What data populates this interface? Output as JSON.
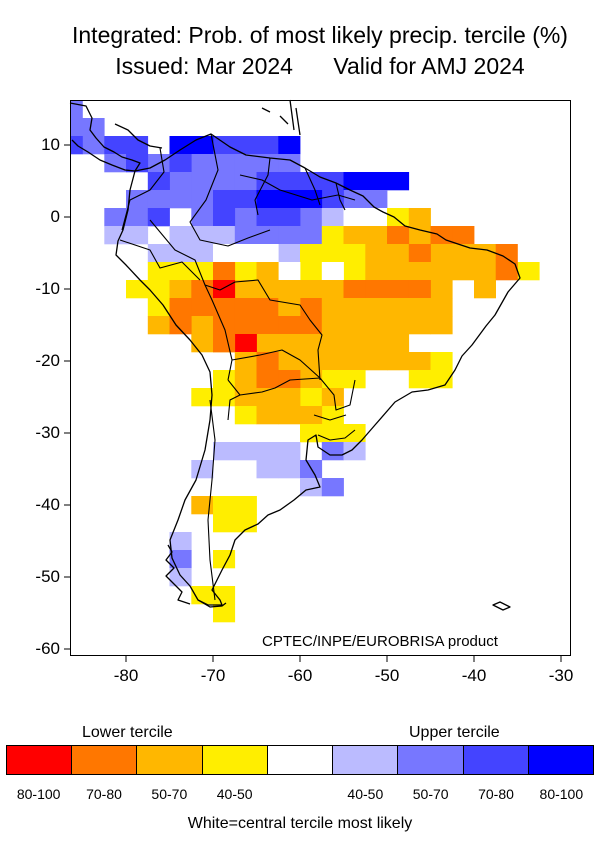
{
  "title": {
    "line1": "Integrated: Prob. of most likely precip. tercile (%)",
    "issued": "Issued: Mar 2024",
    "valid": "Valid for AMJ 2024"
  },
  "credit": "CPTEC/INPE/EUROBRISA product",
  "chart_data": {
    "type": "heatmap",
    "title": "Integrated: Prob. of most likely precip. tercile (%) — Issued: Mar 2024, Valid for AMJ 2024",
    "xlabel": "",
    "ylabel": "",
    "xlim": [
      -86.5,
      -29
    ],
    "ylim": [
      -61,
      16.5
    ],
    "x_ticks": [
      -80,
      -70,
      -60,
      -50,
      -40,
      -30
    ],
    "x_tick_labels": [
      "-80",
      "-70",
      "-60",
      "-50",
      "-40",
      "-30"
    ],
    "y_ticks": [
      10,
      0,
      -10,
      -20,
      -30,
      -40,
      -50,
      -60
    ],
    "y_tick_labels": [
      "10",
      "0",
      "-10",
      "-20",
      "-30",
      "-40",
      "-50",
      "-60"
    ],
    "grid_step_deg": 2.5,
    "categories": [
      "L80",
      "L70",
      "L50",
      "L40",
      "C",
      "U40",
      "U50",
      "U70",
      "U80"
    ],
    "colors": {
      "L80": "#ff0000",
      "L70": "#ff7700",
      "L50": "#ffb700",
      "L40": "#ffee00",
      "C": "#ffffff",
      "U40": "#bbbbff",
      "U50": "#7777ff",
      "U70": "#4444ff",
      "U80": "#0000ff"
    },
    "cells": [
      {
        "lat": 15,
        "lons": [
          -86.25
        ],
        "cat": "U50"
      },
      {
        "lat": 12.5,
        "lons": [
          -86.25,
          -83.75
        ],
        "cat": "U50"
      },
      {
        "lat": 10,
        "lons": [
          -83.75
        ],
        "cat": "U50"
      },
      {
        "lat": 10,
        "lons": [
          -86.25,
          -81.25,
          -78.75,
          -68.75,
          -66.25,
          -63.75
        ],
        "cat": "U70"
      },
      {
        "lat": 10,
        "lons": [
          -73.75,
          -71.25,
          -61.25
        ],
        "cat": "U80"
      },
      {
        "lat": 7.5,
        "lons": [
          -81.25,
          -76.25,
          -71.25,
          -68.75,
          -66.25,
          -63.75,
          -61.25
        ],
        "cat": "U50"
      },
      {
        "lat": 7.5,
        "lons": [
          -78.75,
          -73.75
        ],
        "cat": "U70"
      },
      {
        "lat": 5,
        "lons": [
          -73.75,
          -71.25,
          -68.75,
          -66.25
        ],
        "cat": "U50"
      },
      {
        "lat": 5,
        "lons": [
          -76.25,
          -63.75,
          -61.25,
          -58.75,
          -56.25
        ],
        "cat": "U70"
      },
      {
        "lat": 5,
        "lons": [
          -53.75,
          -51.25,
          -48.75
        ],
        "cat": "U80"
      },
      {
        "lat": 2.5,
        "lons": [
          -78.75,
          -76.25,
          -73.75,
          -71.25,
          -53.75,
          -51.25
        ],
        "cat": "U50"
      },
      {
        "lat": 2.5,
        "lons": [
          -68.75,
          -66.25,
          -56.25
        ],
        "cat": "U70"
      },
      {
        "lat": 2.5,
        "lons": [
          -63.75,
          -61.25,
          -58.75
        ],
        "cat": "U80"
      },
      {
        "lat": 0,
        "lons": [
          -81.25,
          -78.75,
          -71.25,
          -66.25,
          -58.75
        ],
        "cat": "U50"
      },
      {
        "lat": 0,
        "lons": [
          -76.25,
          -68.75,
          -63.75,
          -61.25
        ],
        "cat": "U70"
      },
      {
        "lat": 0,
        "lons": [
          -56.25
        ],
        "cat": "U40"
      },
      {
        "lat": 0,
        "lons": [
          -53.75,
          -51.25
        ],
        "cat": "C"
      },
      {
        "lat": 0,
        "lons": [
          -48.75
        ],
        "cat": "L40"
      },
      {
        "lat": 0,
        "lons": [
          -46.25
        ],
        "cat": "L50"
      },
      {
        "lat": -2.5,
        "lons": [
          -81.25,
          -78.75,
          -73.75,
          -71.25,
          -68.75
        ],
        "cat": "U40"
      },
      {
        "lat": -2.5,
        "lons": [
          -66.25,
          -63.75,
          -61.25,
          -58.75
        ],
        "cat": "U50"
      },
      {
        "lat": -2.5,
        "lons": [
          -56.25
        ],
        "cat": "L40"
      },
      {
        "lat": -2.5,
        "lons": [
          -53.75,
          -51.25,
          -46.25
        ],
        "cat": "L50"
      },
      {
        "lat": -2.5,
        "lons": [
          -48.75,
          -43.75,
          -41.25
        ],
        "cat": "L70"
      },
      {
        "lat": -5,
        "lons": [
          -76.25,
          -73.75,
          -71.25,
          -61.25
        ],
        "cat": "U40"
      },
      {
        "lat": -5,
        "lons": [
          -68.75,
          -66.25,
          -63.75
        ],
        "cat": "C"
      },
      {
        "lat": -5,
        "lons": [
          -58.75,
          -56.25,
          -53.75
        ],
        "cat": "L40"
      },
      {
        "lat": -5,
        "lons": [
          -51.25,
          -48.75,
          -43.75,
          -41.25,
          -38.75
        ],
        "cat": "L50"
      },
      {
        "lat": -5,
        "lons": [
          -46.25,
          -36.25
        ],
        "cat": "L70"
      },
      {
        "lat": -7.5,
        "lons": [
          -76.25,
          -73.75,
          -71.25,
          -66.25,
          -58.75,
          -53.75,
          -33.75
        ],
        "cat": "L40"
      },
      {
        "lat": -7.5,
        "lons": [
          -68.75
        ],
        "cat": "L70"
      },
      {
        "lat": -7.5,
        "lons": [
          -61.25,
          -56.25
        ],
        "cat": "C"
      },
      {
        "lat": -7.5,
        "lons": [
          -63.75,
          -51.25,
          -48.75,
          -46.25,
          -43.75,
          -41.25,
          -38.75
        ],
        "cat": "L50"
      },
      {
        "lat": -7.5,
        "lons": [
          -36.25
        ],
        "cat": "L70"
      },
      {
        "lat": -10,
        "lons": [
          -78.75,
          -76.25
        ],
        "cat": "L40"
      },
      {
        "lat": -10,
        "lons": [
          -73.75,
          -66.25,
          -63.75,
          -61.25,
          -58.75,
          -56.25,
          -43.75,
          -38.75
        ],
        "cat": "L50"
      },
      {
        "lat": -10,
        "lons": [
          -71.25,
          -53.75,
          -51.25,
          -48.75,
          -46.25
        ],
        "cat": "L70"
      },
      {
        "lat": -10,
        "lons": [
          -68.75
        ],
        "cat": "L80"
      },
      {
        "lat": -12.5,
        "lons": [
          -76.25
        ],
        "cat": "L40"
      },
      {
        "lat": -12.5,
        "lons": [
          -73.75,
          -71.25,
          -68.75,
          -66.25,
          -63.75,
          -58.75
        ],
        "cat": "L70"
      },
      {
        "lat": -12.5,
        "lons": [
          -61.25,
          -56.25,
          -53.75,
          -51.25,
          -48.75,
          -46.25,
          -43.75
        ],
        "cat": "L50"
      },
      {
        "lat": -15,
        "lons": [
          -76.25,
          -71.25
        ],
        "cat": "L50"
      },
      {
        "lat": -15,
        "lons": [
          -73.75,
          -68.75,
          -66.25,
          -63.75,
          -61.25,
          -58.75
        ],
        "cat": "L70"
      },
      {
        "lat": -15,
        "lons": [
          -56.25,
          -53.75,
          -51.25,
          -48.75,
          -46.25,
          -43.75
        ],
        "cat": "L50"
      },
      {
        "lat": -17.5,
        "lons": [
          -71.25,
          -68.75,
          -66.25,
          -63.75,
          -61.25,
          -58.75,
          -56.25,
          -53.75,
          -51.25,
          -48.75
        ],
        "cat": "L50"
      },
      {
        "lat": -17.5,
        "lons": [
          -66.25
        ],
        "cat": "L80"
      },
      {
        "lat": -17.5,
        "lons": [
          -68.75
        ],
        "cat": "L70"
      },
      {
        "lat": -20,
        "lons": [
          -66.25,
          -61.25,
          -58.75,
          -56.25,
          -53.75,
          -51.25,
          -48.75,
          -46.25
        ],
        "cat": "L50"
      },
      {
        "lat": -20,
        "lons": [
          -63.75
        ],
        "cat": "L70"
      },
      {
        "lat": -20,
        "lons": [
          -43.75
        ],
        "cat": "L40"
      },
      {
        "lat": -22.5,
        "lons": [
          -68.75,
          -61.25,
          -56.25,
          -53.75
        ],
        "cat": "L40"
      },
      {
        "lat": -22.5,
        "lons": [
          -66.25,
          -58.75
        ],
        "cat": "L50"
      },
      {
        "lat": -22.5,
        "lons": [
          -63.75,
          -61.25
        ],
        "cat": "L70"
      },
      {
        "lat": -22.5,
        "lons": [
          -46.25,
          -43.75
        ],
        "cat": "L40"
      },
      {
        "lat": -25,
        "lons": [
          -71.25,
          -68.75,
          -58.75
        ],
        "cat": "L40"
      },
      {
        "lat": -25,
        "lons": [
          -66.25,
          -63.75,
          -61.25,
          -56.25
        ],
        "cat": "L50"
      },
      {
        "lat": -27.5,
        "lons": [
          -66.25,
          -56.25
        ],
        "cat": "L40"
      },
      {
        "lat": -27.5,
        "lons": [
          -63.75,
          -61.25,
          -58.75
        ],
        "cat": "L50"
      },
      {
        "lat": -30,
        "lons": [
          -58.75,
          -56.25,
          -53.75
        ],
        "cat": "L40"
      },
      {
        "lat": -32.5,
        "lons": [
          -68.75,
          -66.25,
          -63.75,
          -61.25
        ],
        "cat": "U40"
      },
      {
        "lat": -32.5,
        "lons": [
          -56.25
        ],
        "cat": "U50"
      },
      {
        "lat": -32.5,
        "lons": [
          -53.75
        ],
        "cat": "U40"
      },
      {
        "lat": -35,
        "lons": [
          -63.75,
          -61.25
        ],
        "cat": "U40"
      },
      {
        "lat": -35,
        "lons": [
          -58.75
        ],
        "cat": "U50"
      },
      {
        "lat": -35,
        "lons": [
          -71.25
        ],
        "cat": "U40"
      },
      {
        "lat": -37.5,
        "lons": [
          -58.75
        ],
        "cat": "U40"
      },
      {
        "lat": -37.5,
        "lons": [
          -56.25
        ],
        "cat": "U50"
      },
      {
        "lat": -40,
        "lons": [
          -71.25
        ],
        "cat": "L50"
      },
      {
        "lat": -40,
        "lons": [
          -68.75,
          -66.25
        ],
        "cat": "L40"
      },
      {
        "lat": -42.5,
        "lons": [
          -68.75,
          -66.25
        ],
        "cat": "L40"
      },
      {
        "lat": -45,
        "lons": [
          -73.75
        ],
        "cat": "U40"
      },
      {
        "lat": -47.5,
        "lons": [
          -73.75
        ],
        "cat": "U50"
      },
      {
        "lat": -47.5,
        "lons": [
          -68.75
        ],
        "cat": "L40"
      },
      {
        "lat": -50,
        "lons": [
          -73.75
        ],
        "cat": "U40"
      },
      {
        "lat": -52.5,
        "lons": [
          -71.25,
          -68.75
        ],
        "cat": "L40"
      },
      {
        "lat": -55,
        "lons": [
          -68.75
        ],
        "cat": "L40"
      }
    ],
    "legend": [
      {
        "key": "L80",
        "label": "80-100",
        "color": "#ff0000"
      },
      {
        "key": "L70",
        "label": "70-80",
        "color": "#ff7700"
      },
      {
        "key": "L50",
        "label": "50-70",
        "color": "#ffb700"
      },
      {
        "key": "L40",
        "label": "40-50",
        "color": "#ffee00"
      },
      {
        "key": "C",
        "label": "",
        "color": "#ffffff"
      },
      {
        "key": "U40",
        "label": "40-50",
        "color": "#bbbbff"
      },
      {
        "key": "U50",
        "label": "50-70",
        "color": "#7777ff"
      },
      {
        "key": "U70",
        "label": "70-80",
        "color": "#4444ff"
      },
      {
        "key": "U80",
        "label": "80-100",
        "color": "#0000ff"
      }
    ],
    "legend_headings": {
      "lower": "Lower tercile",
      "upper": "Upper tercile"
    },
    "footnote": "White=central tercile most likely"
  }
}
